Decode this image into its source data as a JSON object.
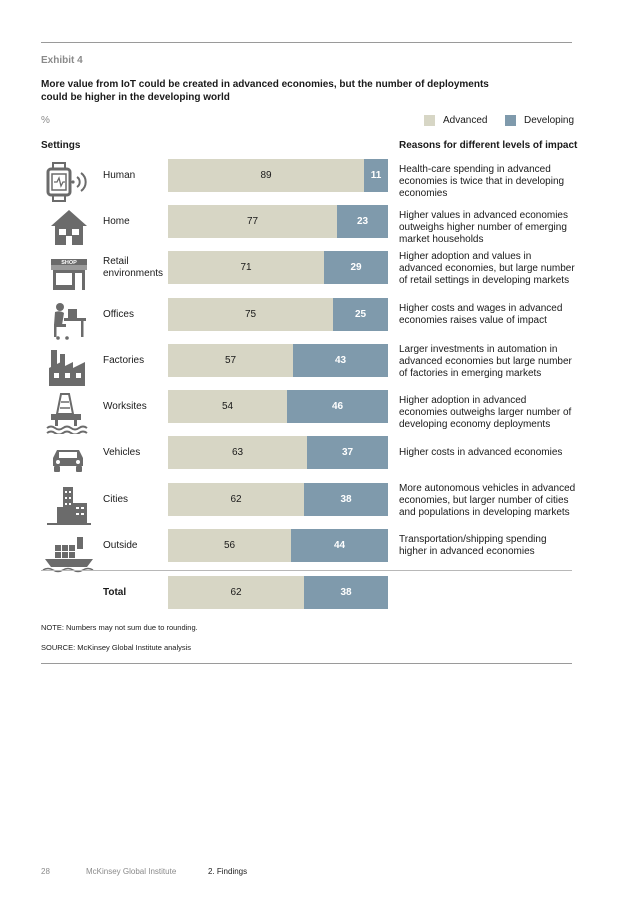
{
  "header": {
    "exhibit": "Exhibit 4",
    "title": "More value from IoT could be created in advanced economies, but the number of deployments could be higher in the developing world",
    "unit": "%"
  },
  "legend": {
    "advanced": "Advanced",
    "developing": "Developing"
  },
  "columns": {
    "settings": "Settings",
    "reasons": "Reasons for different levels of impact"
  },
  "colors": {
    "advanced": "#d7d6c5",
    "developing": "#7f9aac",
    "icon": "#6b6b6b"
  },
  "chart_data": {
    "type": "bar",
    "stacked": true,
    "orientation": "horizontal",
    "categories": [
      "Human",
      "Home",
      "Retail environments",
      "Offices",
      "Factories",
      "Worksites",
      "Vehicles",
      "Cities",
      "Outside",
      "Total"
    ],
    "series": [
      {
        "name": "Advanced",
        "values": [
          89,
          77,
          71,
          75,
          57,
          54,
          63,
          62,
          56,
          62
        ]
      },
      {
        "name": "Developing",
        "values": [
          11,
          23,
          29,
          25,
          43,
          46,
          37,
          38,
          44,
          38
        ]
      }
    ],
    "rows": [
      {
        "label": "Human",
        "icon": "smartwatch-icon",
        "advanced": 89,
        "developing": 11,
        "reason": "Health-care spending in advanced economies is twice that in developing economies"
      },
      {
        "label": "Home",
        "icon": "house-icon",
        "advanced": 77,
        "developing": 23,
        "reason": "Higher values in advanced economies outweighs higher number of emerging market households"
      },
      {
        "label": "Retail environments",
        "icon": "shop-icon",
        "icon_text": "SHOP",
        "advanced": 71,
        "developing": 29,
        "reason": "Higher adoption and values in advanced economies, but large number of retail settings in developing markets"
      },
      {
        "label": "Offices",
        "icon": "office-worker-icon",
        "advanced": 75,
        "developing": 25,
        "reason": "Higher costs and wages in advanced economies raises value of impact"
      },
      {
        "label": "Factories",
        "icon": "factory-icon",
        "advanced": 57,
        "developing": 43,
        "reason": "Larger investments in automation in advanced economies  but large number of factories in emerging markets"
      },
      {
        "label": "Worksites",
        "icon": "oil-rig-icon",
        "advanced": 54,
        "developing": 46,
        "reason": "Higher adoption in advanced economies outweighs larger number of developing economy deployments"
      },
      {
        "label": "Vehicles",
        "icon": "car-icon",
        "advanced": 63,
        "developing": 37,
        "reason": "Higher costs in advanced economies"
      },
      {
        "label": "Cities",
        "icon": "city-buildings-icon",
        "advanced": 62,
        "developing": 38,
        "reason": "More autonomous vehicles in advanced economies, but larger number of cities and populations in developing markets"
      },
      {
        "label": "Outside",
        "icon": "cargo-ship-icon",
        "advanced": 56,
        "developing": 44,
        "reason": "Transportation/shipping spending higher in advanced economies"
      },
      {
        "label": "Total",
        "icon": "",
        "advanced": 62,
        "developing": 38,
        "reason": ""
      }
    ]
  },
  "notes": {
    "note": "NOTE: Numbers may not sum due to rounding.",
    "source": "SOURCE:  McKinsey Global Institute analysis"
  },
  "footer": {
    "page": "28",
    "org": "McKinsey Global Institute",
    "section": "2. Findings"
  }
}
